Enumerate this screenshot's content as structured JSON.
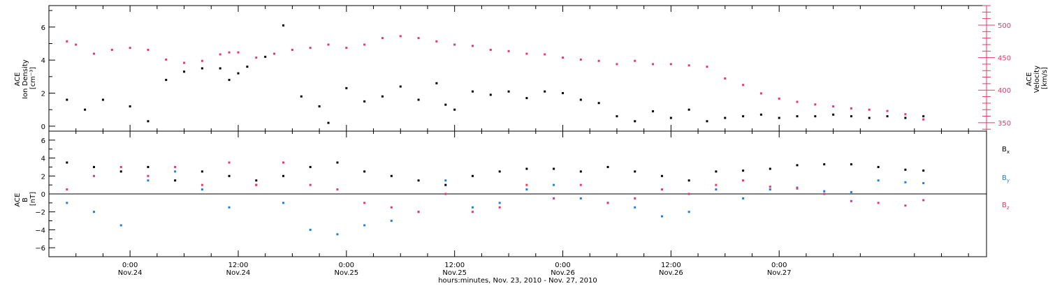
{
  "chart_data": [
    {
      "type": "scatter",
      "panel": "top",
      "ylabel_lines": [
        "ACE",
        "Ion Density",
        "[cm⁻³]"
      ],
      "ylabel_right_lines": [
        "ACE",
        "Velocity",
        "[km/s]"
      ],
      "yticks_left": [
        0,
        2,
        4,
        6
      ],
      "ylim_left": [
        -0.3,
        7.3
      ],
      "yticks_right": [
        350,
        400,
        450,
        500
      ],
      "ylim_right": [
        337,
        530
      ],
      "right_axis_color": "#e8386a",
      "series": [
        {
          "name": "Ion Density",
          "axis": "left",
          "color": "#000000",
          "x": [
            -7,
            -5,
            -3,
            0,
            2,
            4,
            6,
            8,
            10,
            11,
            12,
            13,
            15,
            17,
            19,
            21,
            22,
            24,
            26,
            28,
            30,
            32,
            34,
            35,
            36,
            38,
            40,
            42,
            44,
            46,
            48,
            50,
            52,
            54,
            56,
            58,
            60,
            62,
            64,
            66,
            68,
            70,
            72,
            74,
            76,
            78,
            80,
            82,
            84,
            86,
            88
          ],
          "y": [
            1.6,
            1.0,
            1.6,
            1.2,
            0.3,
            2.8,
            3.3,
            3.5,
            3.5,
            2.8,
            3.2,
            3.6,
            4.2,
            6.1,
            1.8,
            1.2,
            0.2,
            2.3,
            1.5,
            1.8,
            2.4,
            1.6,
            2.6,
            1.3,
            1.0,
            2.1,
            1.9,
            2.1,
            1.7,
            2.1,
            2.0,
            1.6,
            1.4,
            0.6,
            0.3,
            0.9,
            0.5,
            1.0,
            0.3,
            0.5,
            0.6,
            0.7,
            0.5,
            0.6,
            0.6,
            0.7,
            0.6,
            0.5,
            0.6,
            0.5,
            0.6
          ]
        },
        {
          "name": "Velocity",
          "axis": "right",
          "color": "#e8386a",
          "x": [
            -7,
            -6,
            -4,
            -2,
            0,
            2,
            4,
            6,
            8,
            10,
            11,
            12,
            14,
            16,
            18,
            20,
            22,
            24,
            26,
            28,
            30,
            32,
            34,
            36,
            38,
            40,
            42,
            44,
            46,
            48,
            50,
            52,
            54,
            56,
            58,
            60,
            62,
            64,
            66,
            68,
            70,
            72,
            74,
            76,
            78,
            80,
            82,
            84,
            86,
            88
          ],
          "y": [
            475,
            470,
            456,
            462,
            465,
            462,
            447,
            442,
            445,
            455,
            458,
            458,
            450,
            456,
            462,
            465,
            470,
            465,
            470,
            480,
            483,
            480,
            475,
            470,
            468,
            462,
            460,
            456,
            455,
            450,
            447,
            445,
            440,
            445,
            440,
            440,
            438,
            436,
            418,
            408,
            395,
            387,
            382,
            378,
            375,
            372,
            370,
            368,
            363,
            355
          ]
        }
      ]
    },
    {
      "type": "scatter",
      "panel": "bottom",
      "ylabel_lines": [
        "ACE",
        "B",
        "[nT]"
      ],
      "yticks": [
        -6,
        -4,
        -2,
        0,
        2,
        4,
        6
      ],
      "ylim": [
        -7,
        7
      ],
      "zero_line": true,
      "series": [
        {
          "name": "Bx",
          "label_base": "B",
          "label_sub": "x",
          "color": "#000000",
          "x": [
            -7,
            -4,
            -1,
            2,
            5,
            8,
            11,
            14,
            17,
            20,
            23,
            26,
            29,
            32,
            35,
            38,
            41,
            44,
            47,
            50,
            53,
            56,
            59,
            62,
            65,
            68,
            71,
            74,
            77,
            80,
            83,
            86,
            88
          ],
          "y": [
            3.5,
            3.0,
            2.5,
            3.0,
            1.5,
            2.5,
            2.0,
            1.5,
            2.0,
            3.0,
            3.5,
            2.5,
            2.0,
            1.5,
            1.0,
            2.0,
            2.5,
            2.8,
            2.8,
            2.5,
            3.0,
            2.5,
            2.0,
            1.5,
            2.5,
            2.6,
            2.8,
            3.2,
            3.3,
            3.3,
            3.0,
            2.7,
            2.6
          ]
        },
        {
          "name": "By",
          "label_base": "B",
          "label_sub": "y",
          "color": "#1e7fe0",
          "x": [
            -7,
            -4,
            -1,
            2,
            5,
            8,
            11,
            14,
            17,
            20,
            23,
            26,
            29,
            32,
            35,
            38,
            41,
            44,
            47,
            50,
            53,
            56,
            59,
            62,
            65,
            68,
            71,
            74,
            77,
            80,
            83,
            86,
            88
          ],
          "y": [
            -1.0,
            -2.0,
            -3.5,
            1.5,
            2.5,
            0.5,
            -1.5,
            1.0,
            -1.0,
            -4.0,
            -4.5,
            -3.5,
            -3.0,
            -2.0,
            1.5,
            -1.5,
            -1.0,
            0.5,
            1.0,
            -0.5,
            -1.0,
            -1.5,
            -2.5,
            -2.0,
            0.5,
            -0.5,
            0.5,
            0.7,
            0.3,
            0.2,
            1.5,
            1.3,
            1.2
          ]
        },
        {
          "name": "Bz",
          "label_base": "B",
          "label_sub": "z",
          "color": "#e8386a",
          "x": [
            -7,
            -4,
            -1,
            2,
            5,
            8,
            11,
            14,
            17,
            20,
            23,
            26,
            29,
            32,
            35,
            38,
            41,
            44,
            47,
            50,
            53,
            56,
            59,
            62,
            65,
            68,
            71,
            74,
            77,
            80,
            83,
            86,
            88
          ],
          "y": [
            0.5,
            2.0,
            3.0,
            2.0,
            3.0,
            1.0,
            3.5,
            1.0,
            3.5,
            1.0,
            0.5,
            -1.0,
            -1.5,
            -2.0,
            0.0,
            -2.0,
            -1.5,
            1.0,
            -0.5,
            1.0,
            -1.0,
            -0.5,
            0.5,
            0.0,
            1.0,
            1.5,
            0.8,
            0.6,
            0.0,
            -0.8,
            -1.0,
            -1.3,
            -0.7
          ]
        }
      ]
    }
  ],
  "x_axis": {
    "xlim": [
      -9,
      95
    ],
    "ticks": [
      {
        "x": 0,
        "time": "0:00",
        "date": "Nov.24"
      },
      {
        "x": 12,
        "time": "12:00",
        "date": "Nov.24"
      },
      {
        "x": 24,
        "time": "0:00",
        "date": "Nov.25"
      },
      {
        "x": 36,
        "time": "12:00",
        "date": "Nov.25"
      },
      {
        "x": 48,
        "time": "0:00",
        "date": "Nov.26"
      },
      {
        "x": 60,
        "time": "12:00",
        "date": "Nov.26"
      },
      {
        "x": 72,
        "time": "0:00",
        "date": "Nov.27"
      }
    ],
    "label": "hours:minutes, Nov. 23, 2010 - Nov. 27, 2010"
  }
}
